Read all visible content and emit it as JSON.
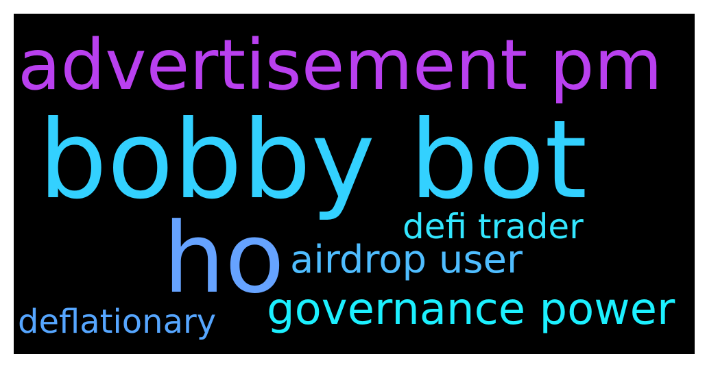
{
  "words": [
    {
      "text": "bobby bot",
      "color": "#33d1ff"
    },
    {
      "text": "advertisement pm",
      "color": "#b940ef"
    },
    {
      "text": "ho",
      "color": "#66a3ff"
    },
    {
      "text": "defi trader",
      "color": "#33e6ff"
    },
    {
      "text": "airdrop user",
      "color": "#4fbdff"
    },
    {
      "text": "governance power",
      "color": "#1cf0ff"
    },
    {
      "text": "deflationary",
      "color": "#56a6ff"
    }
  ],
  "background_color": "#000000"
}
